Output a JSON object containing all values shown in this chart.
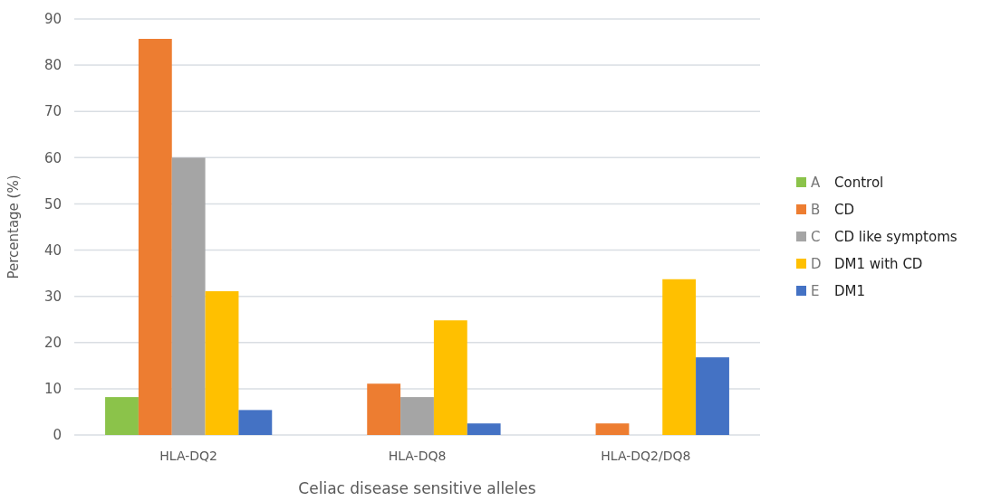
{
  "chart_data": {
    "type": "bar",
    "xlabel": "Celiac disease sensitive alleles",
    "ylabel": "Percentage (%)",
    "categories": [
      "HLA-DQ2",
      "HLA-DQ8",
      "HLA-DQ2/DQ8"
    ],
    "series": [
      {
        "name": "A Control",
        "color": "#8bc34a",
        "values": [
          8.2,
          null,
          null
        ]
      },
      {
        "name": "B CD",
        "color": "#ed7d31",
        "values": [
          85.7,
          11.1,
          2.5
        ]
      },
      {
        "name": "C CD like symptoms",
        "color": "#a5a5a5",
        "values": [
          60,
          8.2,
          null
        ]
      },
      {
        "name": "D DM1 with CD",
        "color": "#ffc000",
        "values": [
          31.1,
          24.8,
          33.7
        ]
      },
      {
        "name": "E DM1",
        "color": "#4472c4",
        "values": [
          5.4,
          2.5,
          16.8
        ]
      }
    ],
    "ylim": [
      0,
      90
    ],
    "yticks": [
      0,
      10,
      20,
      30,
      40,
      50,
      60,
      70,
      80,
      90
    ],
    "grid": "y",
    "legend": "right"
  }
}
